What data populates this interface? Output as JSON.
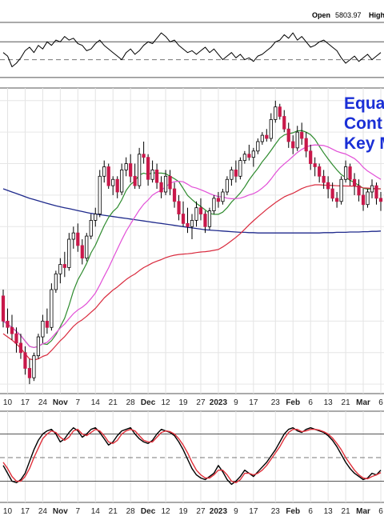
{
  "header": {
    "open_label": "Open",
    "open_value": "5803.97",
    "high_label": "High"
  },
  "annotation": {
    "lines": [
      "Equa",
      "Cont",
      "Key M"
    ],
    "color": "#1a2fd6"
  },
  "chart_data": [
    {
      "type": "line",
      "panel": "rsi",
      "values": [
        58,
        54,
        42,
        46,
        52,
        60,
        64,
        58,
        66,
        62,
        70,
        66,
        72,
        70,
        76,
        72,
        74,
        68,
        66,
        60,
        62,
        68,
        72,
        66,
        62,
        58,
        54,
        50,
        58,
        62,
        56,
        60,
        66,
        70,
        68,
        74,
        80,
        76,
        70,
        72,
        66,
        62,
        58,
        60,
        56,
        60,
        64,
        58,
        62,
        56,
        50,
        54,
        58,
        52,
        56,
        50,
        52,
        48,
        54,
        56,
        60,
        64,
        70,
        72,
        78,
        74,
        80,
        72,
        76,
        70,
        64,
        66,
        70,
        72,
        68,
        64,
        60,
        52,
        46,
        50,
        54,
        48,
        52,
        56,
        50,
        54,
        58
      ],
      "ylim": [
        20,
        90
      ],
      "ref_levels": [
        70,
        30
      ],
      "mid_level": 50,
      "color": "#000000"
    },
    {
      "type": "candlestick",
      "panel": "price",
      "x_labels": [
        "10",
        "17",
        "24",
        "Nov",
        "7",
        "14",
        "21",
        "28",
        "Dec",
        "12",
        "19",
        "27",
        "2023",
        "9",
        "17",
        "23",
        "Feb",
        "6",
        "13",
        "21",
        "Mar",
        "6"
      ],
      "bold_labels": [
        "Nov",
        "Dec",
        "2023",
        "Feb",
        "Mar"
      ],
      "ohlc": [
        [
          3680,
          3700,
          3580,
          3600
        ],
        [
          3600,
          3640,
          3560,
          3580
        ],
        [
          3580,
          3620,
          3540,
          3560
        ],
        [
          3560,
          3580,
          3500,
          3530
        ],
        [
          3530,
          3560,
          3480,
          3500
        ],
        [
          3500,
          3520,
          3430,
          3450
        ],
        [
          3450,
          3480,
          3400,
          3420
        ],
        [
          3420,
          3500,
          3410,
          3490
        ],
        [
          3490,
          3560,
          3480,
          3550
        ],
        [
          3550,
          3620,
          3530,
          3600
        ],
        [
          3600,
          3640,
          3560,
          3580
        ],
        [
          3580,
          3720,
          3570,
          3700
        ],
        [
          3700,
          3760,
          3690,
          3750
        ],
        [
          3750,
          3800,
          3720,
          3780
        ],
        [
          3780,
          3820,
          3740,
          3770
        ],
        [
          3770,
          3880,
          3760,
          3860
        ],
        [
          3860,
          3900,
          3830,
          3880
        ],
        [
          3880,
          3910,
          3820,
          3840
        ],
        [
          3840,
          3860,
          3780,
          3800
        ],
        [
          3800,
          3880,
          3790,
          3870
        ],
        [
          3870,
          3940,
          3860,
          3920
        ],
        [
          3920,
          3960,
          3900,
          3940
        ],
        [
          3940,
          4080,
          3930,
          4060
        ],
        [
          4060,
          4110,
          4040,
          4090
        ],
        [
          4090,
          4100,
          4020,
          4030
        ],
        [
          4030,
          4060,
          4000,
          4050
        ],
        [
          4050,
          4060,
          3990,
          4010
        ],
        [
          4010,
          4100,
          4000,
          4080
        ],
        [
          4080,
          4120,
          4060,
          4100
        ],
        [
          4100,
          4130,
          4040,
          4060
        ],
        [
          4060,
          4100,
          4020,
          4030
        ],
        [
          4030,
          4150,
          4020,
          4130
        ],
        [
          4130,
          4170,
          4100,
          4120
        ],
        [
          4120,
          4130,
          4030,
          4050
        ],
        [
          4050,
          4110,
          4040,
          4080
        ],
        [
          4080,
          4100,
          4020,
          4040
        ],
        [
          4040,
          4060,
          3990,
          4010
        ],
        [
          4010,
          4080,
          4000,
          4060
        ],
        [
          4060,
          4080,
          4000,
          4020
        ],
        [
          4020,
          4040,
          3960,
          3980
        ],
        [
          3980,
          4000,
          3920,
          3940
        ],
        [
          3940,
          3980,
          3900,
          3910
        ],
        [
          3910,
          3960,
          3880,
          3900
        ],
        [
          3900,
          3940,
          3860,
          3920
        ],
        [
          3920,
          3980,
          3900,
          3960
        ],
        [
          3960,
          3990,
          3920,
          3940
        ],
        [
          3940,
          3950,
          3880,
          3900
        ],
        [
          3900,
          3960,
          3890,
          3950
        ],
        [
          3950,
          4000,
          3940,
          3990
        ],
        [
          3990,
          4010,
          3960,
          3980
        ],
        [
          3980,
          4020,
          3970,
          4010
        ],
        [
          4010,
          4060,
          4000,
          4050
        ],
        [
          4050,
          4090,
          4030,
          4080
        ],
        [
          4080,
          4110,
          4040,
          4060
        ],
        [
          4060,
          4120,
          4050,
          4110
        ],
        [
          4110,
          4140,
          4100,
          4130
        ],
        [
          4130,
          4160,
          4110,
          4120
        ],
        [
          4120,
          4150,
          4090,
          4140
        ],
        [
          4140,
          4180,
          4130,
          4170
        ],
        [
          4170,
          4200,
          4160,
          4190
        ],
        [
          4190,
          4210,
          4170,
          4180
        ],
        [
          4180,
          4260,
          4170,
          4240
        ],
        [
          4240,
          4300,
          4230,
          4280
        ],
        [
          4280,
          4290,
          4240,
          4250
        ],
        [
          4250,
          4270,
          4200,
          4210
        ],
        [
          4210,
          4230,
          4150,
          4170
        ],
        [
          4170,
          4190,
          4130,
          4150
        ],
        [
          4150,
          4220,
          4140,
          4200
        ],
        [
          4200,
          4230,
          4160,
          4180
        ],
        [
          4180,
          4200,
          4120,
          4140
        ],
        [
          4140,
          4160,
          4080,
          4100
        ],
        [
          4100,
          4120,
          4060,
          4090
        ],
        [
          4090,
          4100,
          4040,
          4060
        ],
        [
          4060,
          4080,
          4020,
          4040
        ],
        [
          4040,
          4060,
          3990,
          4020
        ],
        [
          4020,
          4040,
          3980,
          3990
        ],
        [
          3990,
          4010,
          3960,
          3980
        ],
        [
          3980,
          4060,
          3970,
          4050
        ],
        [
          4050,
          4110,
          4040,
          4090
        ],
        [
          4090,
          4100,
          4030,
          4050
        ],
        [
          4050,
          4070,
          4000,
          4030
        ],
        [
          4030,
          4050,
          3980,
          4000
        ],
        [
          4000,
          4020,
          3950,
          3970
        ],
        [
          3970,
          4020,
          3960,
          4010
        ],
        [
          4010,
          4050,
          3990,
          4030
        ],
        [
          4030,
          4040,
          3970,
          3990
        ],
        [
          3990,
          4010,
          3950,
          3980
        ]
      ],
      "ylim": [
        3380,
        4330
      ],
      "colors": {
        "up": "#ffffff",
        "down": "#c8184a",
        "outline": "#000000"
      },
      "moving_averages": [
        {
          "period": 10,
          "color": "#2e8b2e"
        },
        {
          "period": 20,
          "color": "#e24fd7"
        },
        {
          "period": 50,
          "color": "#d92b3e"
        }
      ],
      "long_ma": {
        "values": [
          4020,
          4015,
          4010,
          4005,
          4000,
          3995,
          3990,
          3986,
          3982,
          3978,
          3974,
          3970,
          3966,
          3963,
          3960,
          3957,
          3954,
          3951,
          3948,
          3945,
          3942,
          3940,
          3938,
          3936,
          3934,
          3932,
          3930,
          3928,
          3926,
          3924,
          3922,
          3920,
          3918,
          3916,
          3914,
          3912,
          3910,
          3908,
          3906,
          3904,
          3902,
          3900,
          3898,
          3896,
          3894,
          3892,
          3890,
          3889,
          3888,
          3887,
          3886,
          3885,
          3884,
          3883,
          3882,
          3882,
          3881,
          3881,
          3880,
          3880,
          3880,
          3880,
          3880,
          3880,
          3880,
          3880,
          3880,
          3880,
          3880,
          3880,
          3880,
          3880,
          3880,
          3881,
          3881,
          3881,
          3882,
          3882,
          3882,
          3883,
          3883,
          3883,
          3884,
          3884,
          3885,
          3885,
          3886
        ],
        "color": "#1f2a8c"
      },
      "grid": true
    },
    {
      "type": "line",
      "panel": "stochastic",
      "series": [
        {
          "values": [
            40,
            30,
            20,
            18,
            22,
            30,
            45,
            60,
            72,
            80,
            84,
            86,
            80,
            70,
            74,
            82,
            88,
            84,
            76,
            80,
            86,
            88,
            82,
            74,
            66,
            70,
            78,
            84,
            86,
            88,
            80,
            74,
            70,
            68,
            72,
            80,
            86,
            84,
            82,
            78,
            70,
            60,
            48,
            36,
            28,
            24,
            22,
            26,
            30,
            40,
            32,
            22,
            16,
            20,
            26,
            34,
            30,
            26,
            32,
            38,
            44,
            52,
            60,
            70,
            80,
            86,
            88,
            84,
            82,
            86,
            88,
            86,
            84,
            82,
            78,
            72,
            64,
            54,
            44,
            36,
            30,
            26,
            22,
            24,
            30,
            28,
            34
          ],
          "color": "#000000"
        },
        {
          "values": [
            44,
            36,
            26,
            20,
            20,
            26,
            36,
            50,
            62,
            74,
            80,
            84,
            82,
            76,
            72,
            76,
            84,
            86,
            80,
            78,
            82,
            86,
            84,
            78,
            70,
            68,
            72,
            80,
            84,
            86,
            84,
            78,
            72,
            70,
            70,
            76,
            82,
            84,
            83,
            80,
            74,
            66,
            56,
            44,
            34,
            28,
            24,
            24,
            28,
            34,
            34,
            28,
            20,
            18,
            22,
            30,
            30,
            28,
            30,
            34,
            40,
            48,
            56,
            64,
            74,
            82,
            86,
            86,
            83,
            84,
            86,
            86,
            85,
            83,
            80,
            75,
            68,
            60,
            50,
            42,
            34,
            28,
            24,
            23,
            26,
            28,
            31
          ],
          "color": "#e0303a"
        }
      ],
      "ylim": [
        -5,
        105
      ],
      "ref_levels": [
        80,
        20
      ],
      "mid_level": 50
    }
  ]
}
